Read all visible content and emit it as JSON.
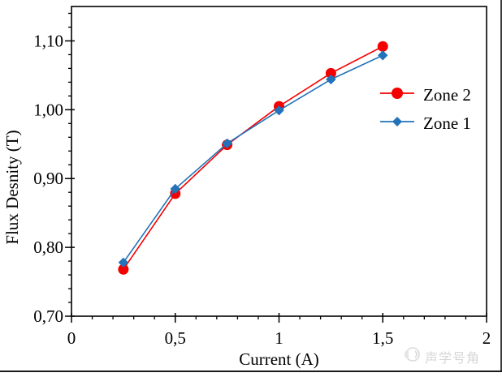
{
  "chart_data": {
    "type": "line",
    "x": [
      0.25,
      0.5,
      0.75,
      1.0,
      1.25,
      1.5
    ],
    "series": [
      {
        "name": "Zone 2",
        "color": "#f40000",
        "marker": "circle",
        "values": [
          0.768,
          0.878,
          0.949,
          1.005,
          1.053,
          1.092
        ]
      },
      {
        "name": "Zone 1",
        "color": "#2273b9",
        "marker": "diamond",
        "values": [
          0.778,
          0.885,
          0.951,
          0.999,
          1.044,
          1.079
        ]
      }
    ],
    "title": "",
    "xlabel": "Current (A)",
    "ylabel": "Flux Desnity (T)",
    "xlim": [
      0,
      2
    ],
    "ylim": [
      0.7,
      1.15
    ],
    "x_major_ticks": [
      0,
      0.5,
      1,
      1.5,
      2
    ],
    "x_tick_labels": [
      "0",
      "0,5",
      "1",
      "1,5",
      "2"
    ],
    "x_minor_step": 0.1,
    "y_major_ticks": [
      0.7,
      0.8,
      0.9,
      1.0,
      1.1
    ],
    "y_tick_labels": [
      "0,70",
      "0,80",
      "0,90",
      "1,00",
      "1,10"
    ],
    "y_minor_step": 0.02,
    "grid": false,
    "legend_position": "right-middle",
    "axis_color": "#000000"
  },
  "legend": {
    "items": [
      {
        "label": "Zone 2"
      },
      {
        "label": "Zone 1"
      }
    ]
  },
  "watermark": {
    "text": "声学号角",
    "icon": "horn-logo-icon",
    "color": "#d6d6d6"
  }
}
